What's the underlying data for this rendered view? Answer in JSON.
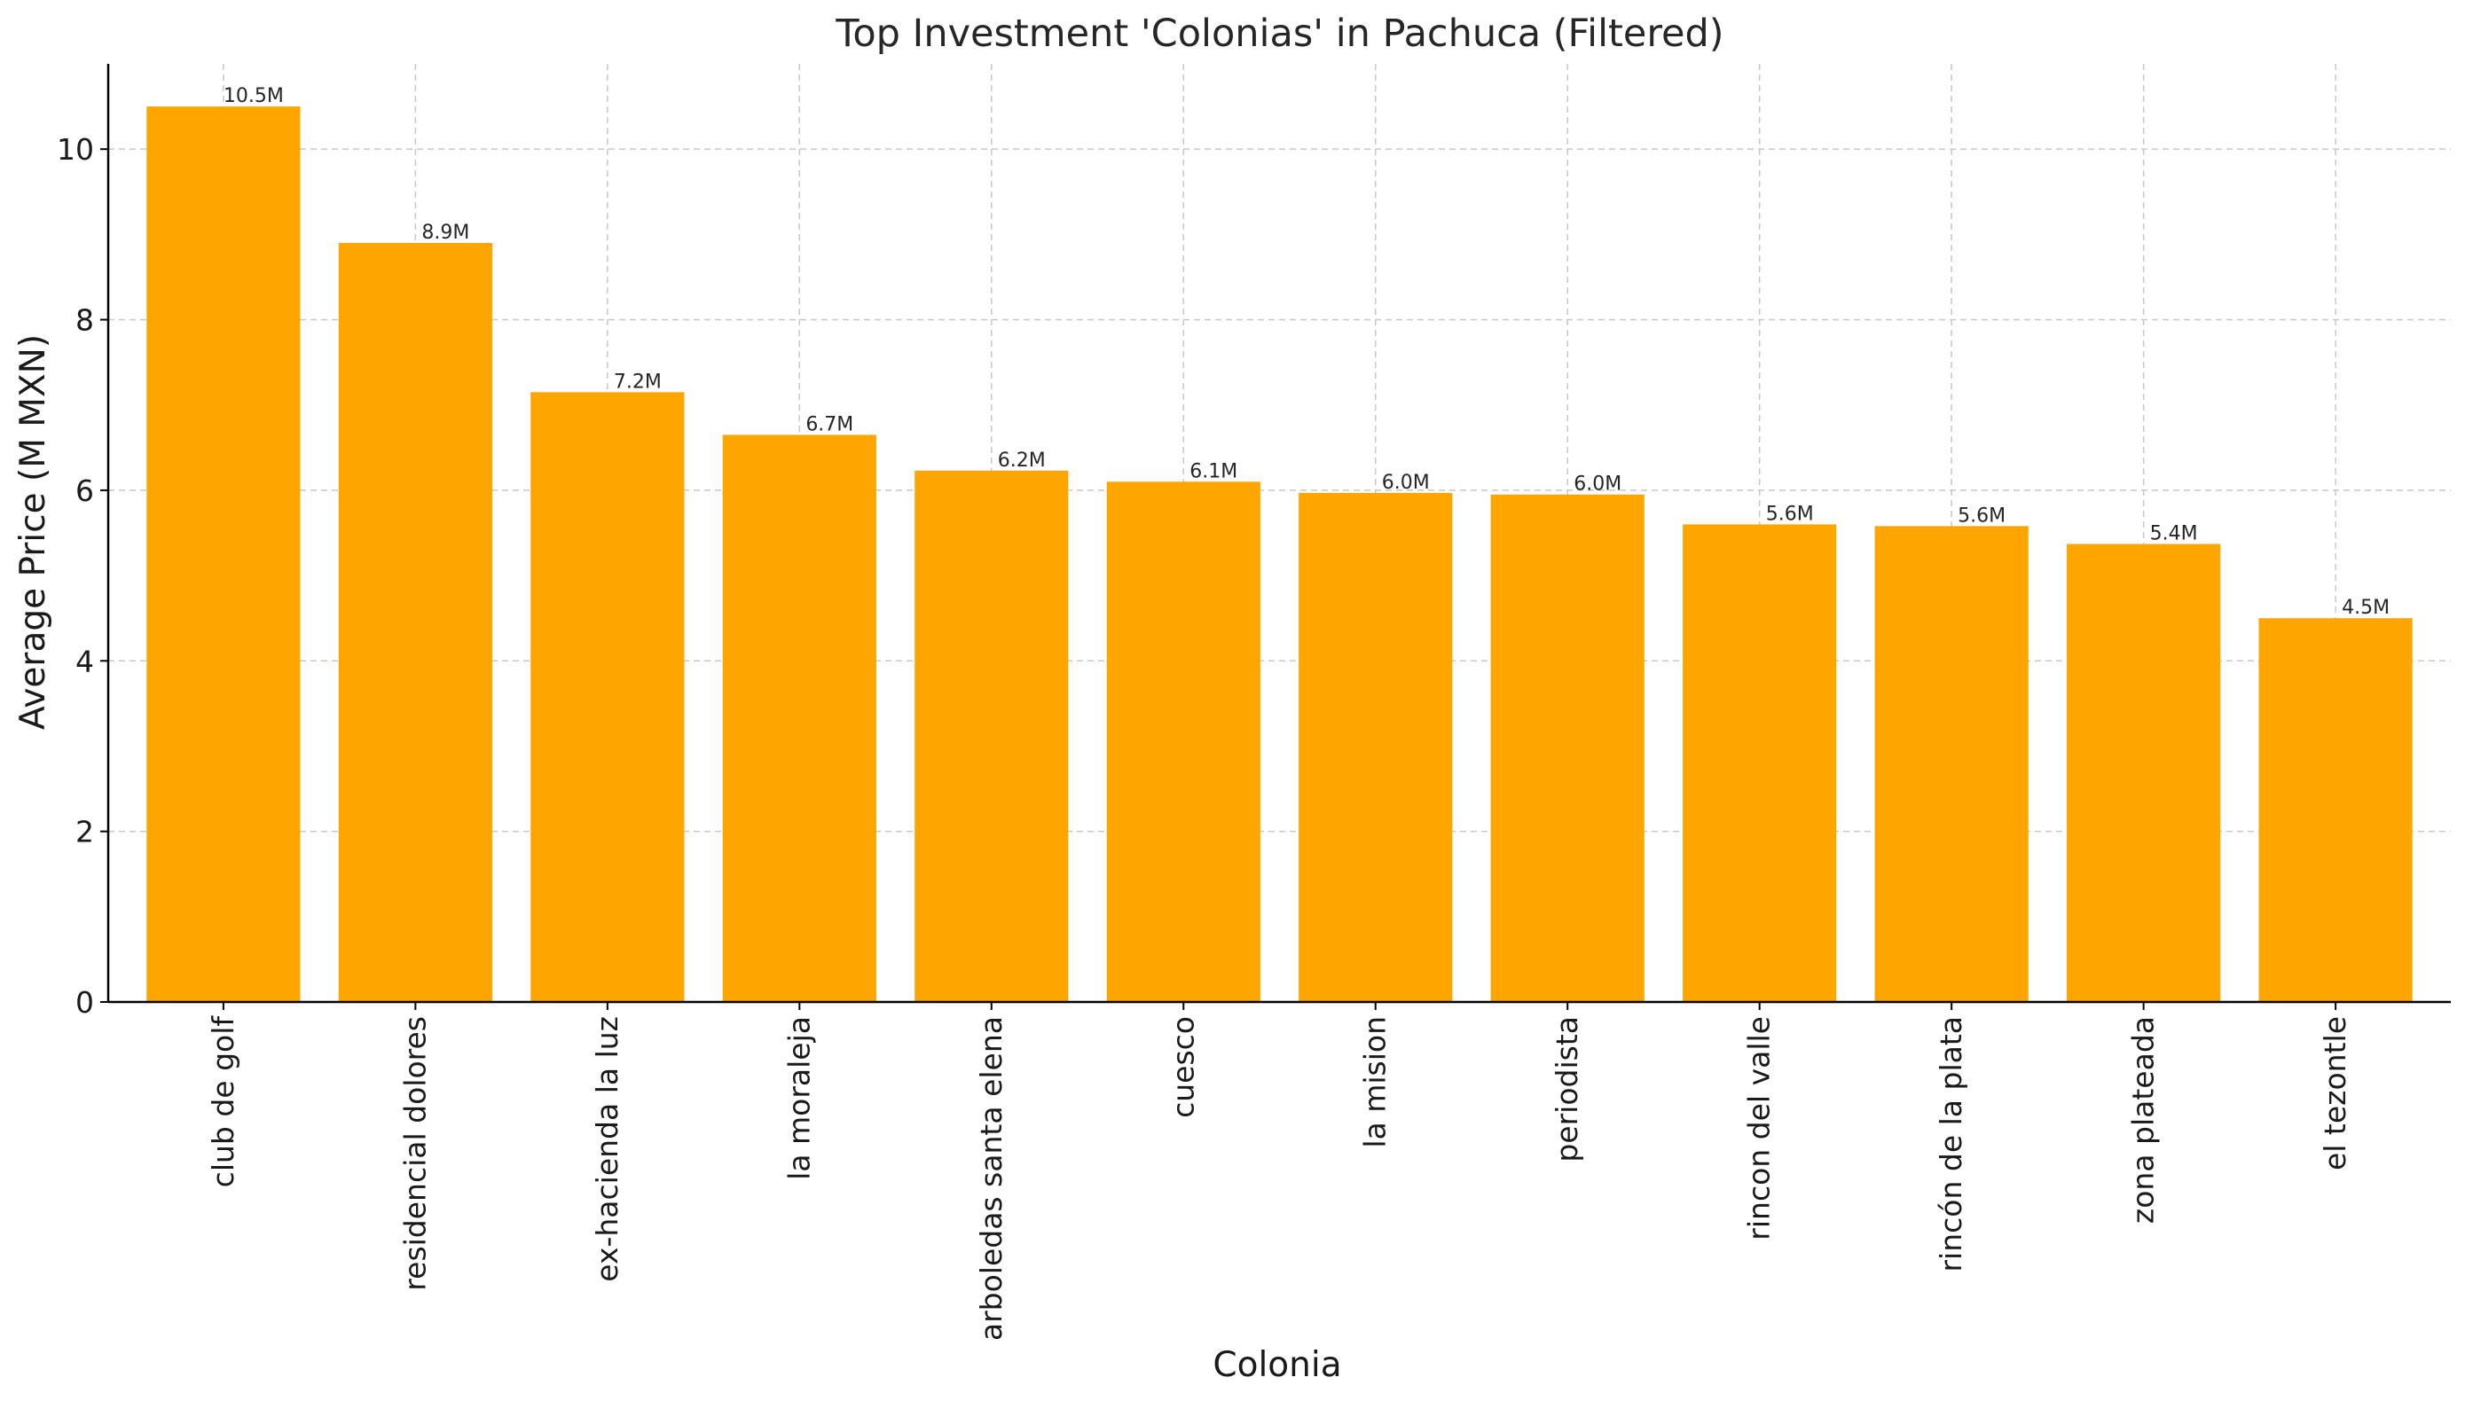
{
  "chart_data": {
    "type": "bar",
    "title": "Top Investment 'Colonias' in Pachuca (Filtered)",
    "xlabel": "Colonia",
    "ylabel": "Average Price (M MXN)",
    "categories": [
      "club de golf",
      "residencial dolores",
      "ex-hacienda la luz",
      "la moraleja",
      "arboledas santa elena",
      "cuesco",
      "la mision",
      "periodista",
      "rincon del valle",
      "rincón de la plata",
      "zona plateada",
      "el tezontle"
    ],
    "values": [
      10.5,
      8.9,
      7.15,
      6.65,
      6.23,
      6.1,
      5.97,
      5.95,
      5.6,
      5.58,
      5.37,
      4.5
    ],
    "data_labels": [
      "10.5M",
      "8.9M",
      "7.2M",
      "6.7M",
      "6.2M",
      "6.1M",
      "6.0M",
      "6.0M",
      "5.6M",
      "5.6M",
      "5.4M",
      "4.5M"
    ],
    "ylim": [
      0,
      11
    ],
    "yticks": [
      0,
      2,
      4,
      6,
      8,
      10
    ],
    "grid": true,
    "bar_color": "#FFA500"
  }
}
